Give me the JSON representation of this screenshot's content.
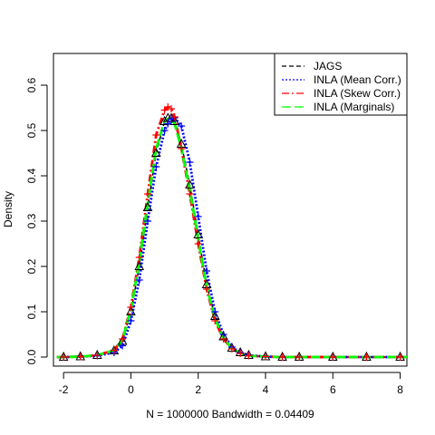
{
  "chart_data": {
    "type": "line",
    "title": "",
    "xlabel": "N = 1000000   Bandwidth = 0.04409",
    "ylabel": "Density",
    "xlim": [
      -2.3,
      8.2
    ],
    "ylim": [
      -0.02,
      0.67
    ],
    "x_ticks": [
      -2,
      0,
      2,
      4,
      6,
      8
    ],
    "y_ticks": [
      0.0,
      0.1,
      0.2,
      0.3,
      0.4,
      0.5,
      0.6
    ],
    "x_tick_labels": [
      "-2",
      "0",
      "2",
      "4",
      "6",
      "8"
    ],
    "y_tick_labels": [
      "0.0",
      "0.1",
      "0.2",
      "0.3",
      "0.4",
      "0.5",
      "0.6"
    ],
    "legend_position": "top-right",
    "grid": false,
    "x": [
      -2.2,
      -2.0,
      -1.5,
      -1.0,
      -0.5,
      -0.25,
      0.0,
      0.25,
      0.5,
      0.75,
      1.0,
      1.1,
      1.2,
      1.3,
      1.5,
      1.75,
      2.0,
      2.25,
      2.5,
      2.75,
      3.0,
      3.25,
      3.5,
      4.0,
      4.5,
      5.0,
      6.0,
      7.0,
      8.0,
      8.2
    ],
    "series": [
      {
        "name": "JAGS",
        "color": "#000000",
        "dash": "5,3",
        "width": 1.5,
        "marker": "triangle",
        "values": [
          0,
          0,
          0.001,
          0.004,
          0.014,
          0.035,
          0.1,
          0.2,
          0.33,
          0.45,
          0.52,
          0.527,
          0.527,
          0.52,
          0.47,
          0.38,
          0.27,
          0.16,
          0.09,
          0.045,
          0.02,
          0.01,
          0.004,
          0.001,
          0,
          0,
          0,
          0,
          0,
          0
        ]
      },
      {
        "name": "INLA (Mean Corr.)",
        "color": "#0000ff",
        "dash": "2,2",
        "width": 2.8,
        "marker": "plus",
        "values": [
          0,
          0,
          0.001,
          0.003,
          0.01,
          0.025,
          0.08,
          0.17,
          0.3,
          0.42,
          0.5,
          0.515,
          0.525,
          0.528,
          0.51,
          0.43,
          0.31,
          0.19,
          0.1,
          0.05,
          0.022,
          0.01,
          0.004,
          0.001,
          0,
          0,
          0,
          0,
          0,
          0
        ]
      },
      {
        "name": "INLA (Skew Corr.)",
        "color": "#ff0000",
        "dash": "8,3,2,3",
        "width": 2.8,
        "marker": "plus",
        "values": [
          0,
          0,
          0.001,
          0.004,
          0.015,
          0.04,
          0.11,
          0.22,
          0.36,
          0.49,
          0.545,
          0.552,
          0.548,
          0.53,
          0.46,
          0.36,
          0.25,
          0.15,
          0.08,
          0.04,
          0.018,
          0.008,
          0.003,
          0.001,
          0,
          0,
          0,
          0,
          0,
          0
        ]
      },
      {
        "name": "INLA (Marginals)",
        "color": "#00ff00",
        "dash": "10,4",
        "width": 2.8,
        "marker": "none",
        "values": [
          0,
          0,
          0.001,
          0.004,
          0.015,
          0.038,
          0.105,
          0.21,
          0.34,
          0.46,
          0.52,
          0.526,
          0.524,
          0.515,
          0.46,
          0.37,
          0.26,
          0.155,
          0.085,
          0.042,
          0.019,
          0.009,
          0.003,
          0.001,
          0,
          0,
          0,
          0,
          0,
          0
        ]
      }
    ]
  }
}
